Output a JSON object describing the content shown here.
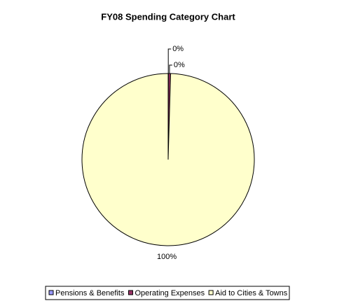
{
  "chart_data": {
    "type": "pie",
    "title": "FY08 Spending Category Chart",
    "categories": [
      "Pensions & Benefits",
      "Operating Expenses",
      "Aid to Cities & Towns"
    ],
    "values": [
      0.05,
      0.4,
      99.55
    ],
    "value_labels": [
      "0%",
      "0%",
      "100%"
    ],
    "colors": [
      "#9999ff",
      "#993366",
      "#ffffcc"
    ],
    "legend": "bottom"
  }
}
